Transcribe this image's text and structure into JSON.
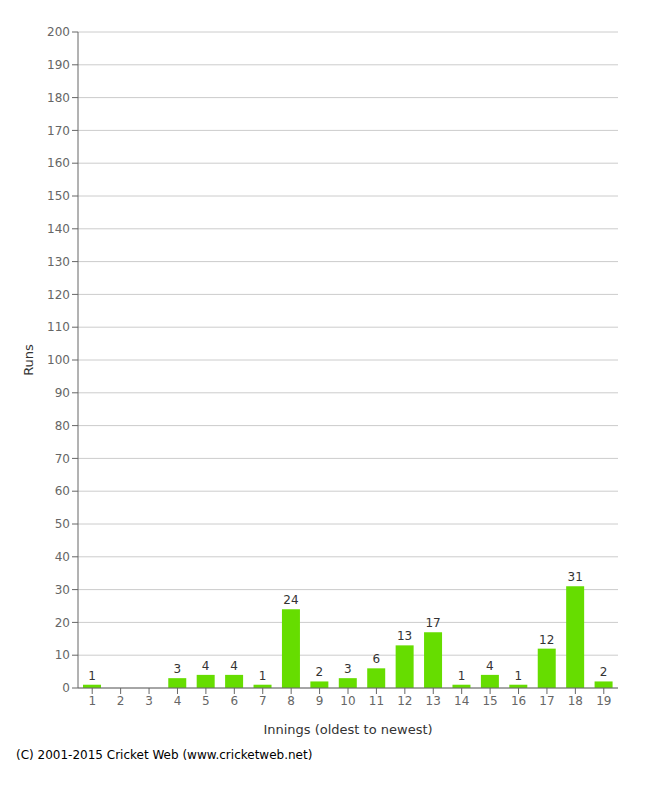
{
  "chart_data": {
    "type": "bar",
    "xlabel": "Innings (oldest to newest)",
    "ylabel": "Runs",
    "categories": [
      "1",
      "2",
      "3",
      "4",
      "5",
      "6",
      "7",
      "8",
      "9",
      "10",
      "11",
      "12",
      "13",
      "14",
      "15",
      "16",
      "17",
      "18",
      "19"
    ],
    "values": [
      1,
      0,
      0,
      3,
      4,
      4,
      1,
      24,
      2,
      3,
      6,
      13,
      17,
      1,
      4,
      1,
      12,
      31,
      2
    ],
    "color": "#66dd00",
    "ylim": [
      0,
      200
    ],
    "yticks": [
      0,
      10,
      20,
      30,
      40,
      50,
      60,
      70,
      80,
      90,
      100,
      110,
      120,
      130,
      140,
      150,
      160,
      170,
      180,
      190,
      200
    ],
    "grid": true,
    "data_labels": true,
    "annotations": [
      "(C) 2001-2015 Cricket Web (www.cricketweb.net)"
    ]
  }
}
